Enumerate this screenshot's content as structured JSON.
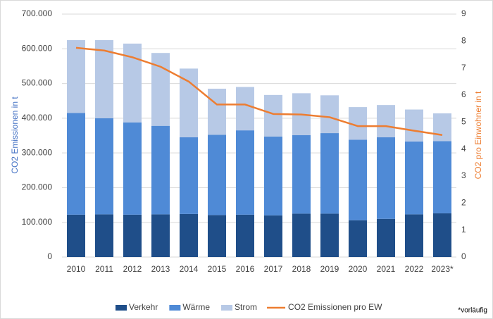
{
  "chart_data": {
    "type": "bar-line",
    "categories": [
      "2010",
      "2011",
      "2012",
      "2013",
      "2014",
      "2015",
      "2016",
      "2017",
      "2018",
      "2019",
      "2020",
      "2021",
      "2022",
      "2023*"
    ],
    "series": [
      {
        "name": "Verkehr",
        "type": "bar",
        "color": "#1f4e89",
        "values": [
          122000,
          123000,
          122000,
          123000,
          124000,
          121000,
          122000,
          120000,
          125000,
          125000,
          106000,
          110000,
          123000,
          126000
        ]
      },
      {
        "name": "Wärme",
        "type": "bar",
        "color": "#4f8ad6",
        "values": [
          293000,
          277000,
          266000,
          255000,
          221000,
          231000,
          243000,
          227000,
          226000,
          232000,
          232000,
          235000,
          210000,
          208000
        ]
      },
      {
        "name": "Strom",
        "type": "bar",
        "color": "#b7c9e6",
        "values": [
          210000,
          225000,
          227000,
          210000,
          198000,
          133000,
          125000,
          120000,
          121000,
          109000,
          94000,
          93000,
          92000,
          80000
        ]
      },
      {
        "name": "CO2 Emissionen pro EW",
        "type": "line",
        "axis": "y2",
        "color": "#ed7d31",
        "values": [
          7.75,
          7.65,
          7.4,
          7.05,
          6.5,
          5.65,
          5.65,
          5.3,
          5.28,
          5.18,
          4.85,
          4.85,
          4.68,
          4.52
        ]
      }
    ],
    "ylabel": "CO2 Emissionen in t",
    "y2label": "CO2  pro Einwohner in t",
    "ylim": [
      0,
      700000
    ],
    "yticks": [
      {
        "value": 0,
        "label": "0"
      },
      {
        "value": 100000,
        "label": "100.000"
      },
      {
        "value": 200000,
        "label": "200.000"
      },
      {
        "value": 300000,
        "label": "300.000"
      },
      {
        "value": 400000,
        "label": "400.000"
      },
      {
        "value": 500000,
        "label": "500.000"
      },
      {
        "value": 600000,
        "label": "600.000"
      },
      {
        "value": 700000,
        "label": "700.000"
      }
    ],
    "y2lim": [
      0,
      9
    ],
    "y2ticks": [
      0,
      1,
      2,
      3,
      4,
      5,
      6,
      7,
      8,
      9
    ],
    "grid": true,
    "legend": "bottom",
    "note": "*vorläufig"
  }
}
